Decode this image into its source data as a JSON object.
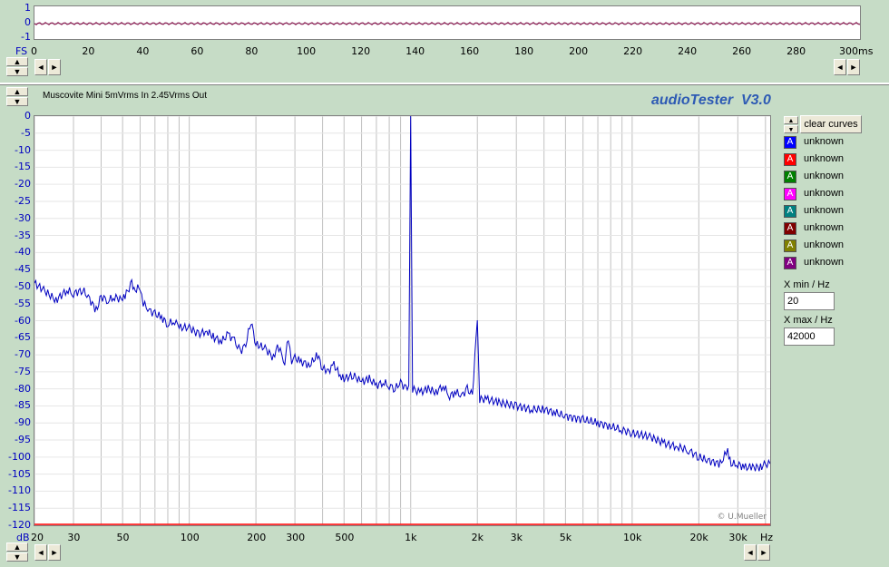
{
  "top_strip": {
    "y_ticks": [
      "1",
      "0",
      "-1"
    ],
    "x_label_prefix": "FS",
    "x_ticks": [
      "0",
      "20",
      "40",
      "60",
      "80",
      "100",
      "120",
      "140",
      "160",
      "180",
      "200",
      "220",
      "240",
      "260",
      "280",
      "300ms"
    ]
  },
  "header": {
    "measurement_title": "Muscovite Mini 5mVrms In 2.45Vrms Out",
    "app_title": "audioTester  V3.0"
  },
  "chart_data": {
    "type": "line",
    "title": "Muscovite Mini 5mVrms In 2.45Vrms Out",
    "xlabel": "Hz",
    "ylabel": "dB",
    "x_scale": "log",
    "xlim": [
      20,
      42000
    ],
    "ylim": [
      -120,
      0
    ],
    "y_ticks": [
      "0",
      "-5",
      "-10",
      "-15",
      "-20",
      "-25",
      "-30",
      "-35",
      "-40",
      "-45",
      "-50",
      "-55",
      "-60",
      "-65",
      "-70",
      "-75",
      "-80",
      "-85",
      "-90",
      "-95",
      "-100",
      "-105",
      "-110",
      "-115",
      "-120"
    ],
    "x_ticks": [
      {
        "v": 20,
        "label": "20"
      },
      {
        "v": 30,
        "label": "30"
      },
      {
        "v": 50,
        "label": "50"
      },
      {
        "v": 100,
        "label": "100"
      },
      {
        "v": 200,
        "label": "200"
      },
      {
        "v": 300,
        "label": "300"
      },
      {
        "v": 500,
        "label": "500"
      },
      {
        "v": 1000,
        "label": "1k"
      },
      {
        "v": 2000,
        "label": "2k"
      },
      {
        "v": 3000,
        "label": "3k"
      },
      {
        "v": 5000,
        "label": "5k"
      },
      {
        "v": 10000,
        "label": "10k"
      },
      {
        "v": 20000,
        "label": "20k"
      },
      {
        "v": 30000,
        "label": "30k"
      }
    ],
    "y_unit_label": "dB",
    "x_unit_label": "Hz",
    "series": [
      {
        "color": "#0000c0",
        "points": [
          [
            20,
            -49
          ],
          [
            22,
            -51
          ],
          [
            25,
            -54
          ],
          [
            28,
            -51
          ],
          [
            30,
            -52
          ],
          [
            33,
            -51
          ],
          [
            35,
            -53
          ],
          [
            38,
            -57
          ],
          [
            40,
            -53
          ],
          [
            43,
            -54
          ],
          [
            46,
            -53
          ],
          [
            50,
            -54
          ],
          [
            52,
            -52
          ],
          [
            55,
            -49
          ],
          [
            57,
            -51
          ],
          [
            60,
            -50
          ],
          [
            62,
            -55
          ],
          [
            66,
            -57
          ],
          [
            70,
            -58
          ],
          [
            75,
            -59
          ],
          [
            80,
            -61
          ],
          [
            86,
            -60
          ],
          [
            90,
            -62
          ],
          [
            100,
            -62
          ],
          [
            110,
            -64
          ],
          [
            120,
            -63
          ],
          [
            130,
            -65
          ],
          [
            140,
            -66
          ],
          [
            150,
            -64
          ],
          [
            160,
            -66
          ],
          [
            170,
            -69
          ],
          [
            180,
            -67
          ],
          [
            190,
            -60
          ],
          [
            200,
            -67
          ],
          [
            220,
            -68
          ],
          [
            240,
            -71
          ],
          [
            250,
            -67
          ],
          [
            270,
            -72
          ],
          [
            280,
            -65
          ],
          [
            290,
            -73
          ],
          [
            300,
            -71
          ],
          [
            320,
            -72
          ],
          [
            350,
            -73
          ],
          [
            380,
            -70
          ],
          [
            400,
            -74
          ],
          [
            420,
            -75
          ],
          [
            450,
            -73
          ],
          [
            480,
            -76
          ],
          [
            500,
            -77
          ],
          [
            550,
            -76
          ],
          [
            600,
            -78
          ],
          [
            650,
            -77
          ],
          [
            700,
            -79
          ],
          [
            750,
            -78
          ],
          [
            800,
            -79
          ],
          [
            850,
            -80
          ],
          [
            900,
            -78
          ],
          [
            950,
            -80
          ],
          [
            980,
            -79
          ],
          [
            1000,
            0
          ],
          [
            1020,
            -80
          ],
          [
            1100,
            -81
          ],
          [
            1200,
            -80
          ],
          [
            1300,
            -81
          ],
          [
            1400,
            -79
          ],
          [
            1500,
            -82
          ],
          [
            1600,
            -81
          ],
          [
            1700,
            -82
          ],
          [
            1800,
            -80
          ],
          [
            1900,
            -82
          ],
          [
            2000,
            -59
          ],
          [
            2050,
            -83
          ],
          [
            2200,
            -83
          ],
          [
            2500,
            -84
          ],
          [
            3000,
            -85
          ],
          [
            3500,
            -86
          ],
          [
            4000,
            -86
          ],
          [
            4500,
            -87
          ],
          [
            5000,
            -88
          ],
          [
            6000,
            -89
          ],
          [
            7000,
            -90
          ],
          [
            8000,
            -91
          ],
          [
            9000,
            -92
          ],
          [
            10000,
            -93
          ],
          [
            12000,
            -94
          ],
          [
            14000,
            -96
          ],
          [
            16000,
            -97
          ],
          [
            18000,
            -98
          ],
          [
            20000,
            -100
          ],
          [
            22000,
            -101
          ],
          [
            25000,
            -102
          ],
          [
            27000,
            -98
          ],
          [
            28000,
            -102
          ],
          [
            30000,
            -102
          ],
          [
            32000,
            -103
          ],
          [
            35000,
            -103
          ],
          [
            38000,
            -103
          ],
          [
            40000,
            -102
          ],
          [
            42000,
            -102
          ]
        ]
      }
    ],
    "annotation": "© U.Mueller"
  },
  "legend": {
    "clear_label": "clear curves",
    "items": [
      {
        "marker": "A",
        "label": "unknown",
        "color": "#0000ff"
      },
      {
        "marker": "A",
        "label": "unknown",
        "color": "#ff0000"
      },
      {
        "marker": "A",
        "label": "unknown",
        "color": "#008000"
      },
      {
        "marker": "A",
        "label": "unknown",
        "color": "#ff00ff"
      },
      {
        "marker": "A",
        "label": "unknown",
        "color": "#008080"
      },
      {
        "marker": "A",
        "label": "unknown",
        "color": "#800000"
      },
      {
        "marker": "A",
        "label": "unknown",
        "color": "#808000"
      },
      {
        "marker": "A",
        "label": "unknown",
        "color": "#800080"
      }
    ]
  },
  "range": {
    "xmin_label": "X min / Hz",
    "xmin_value": "20",
    "xmax_label": "X max / Hz",
    "xmax_value": "42000"
  },
  "bottom": {
    "db_label": "dB",
    "hz_label": "Hz"
  },
  "glyphs": {
    "up": "▲",
    "down": "▼",
    "left": "◄",
    "right": "►"
  }
}
